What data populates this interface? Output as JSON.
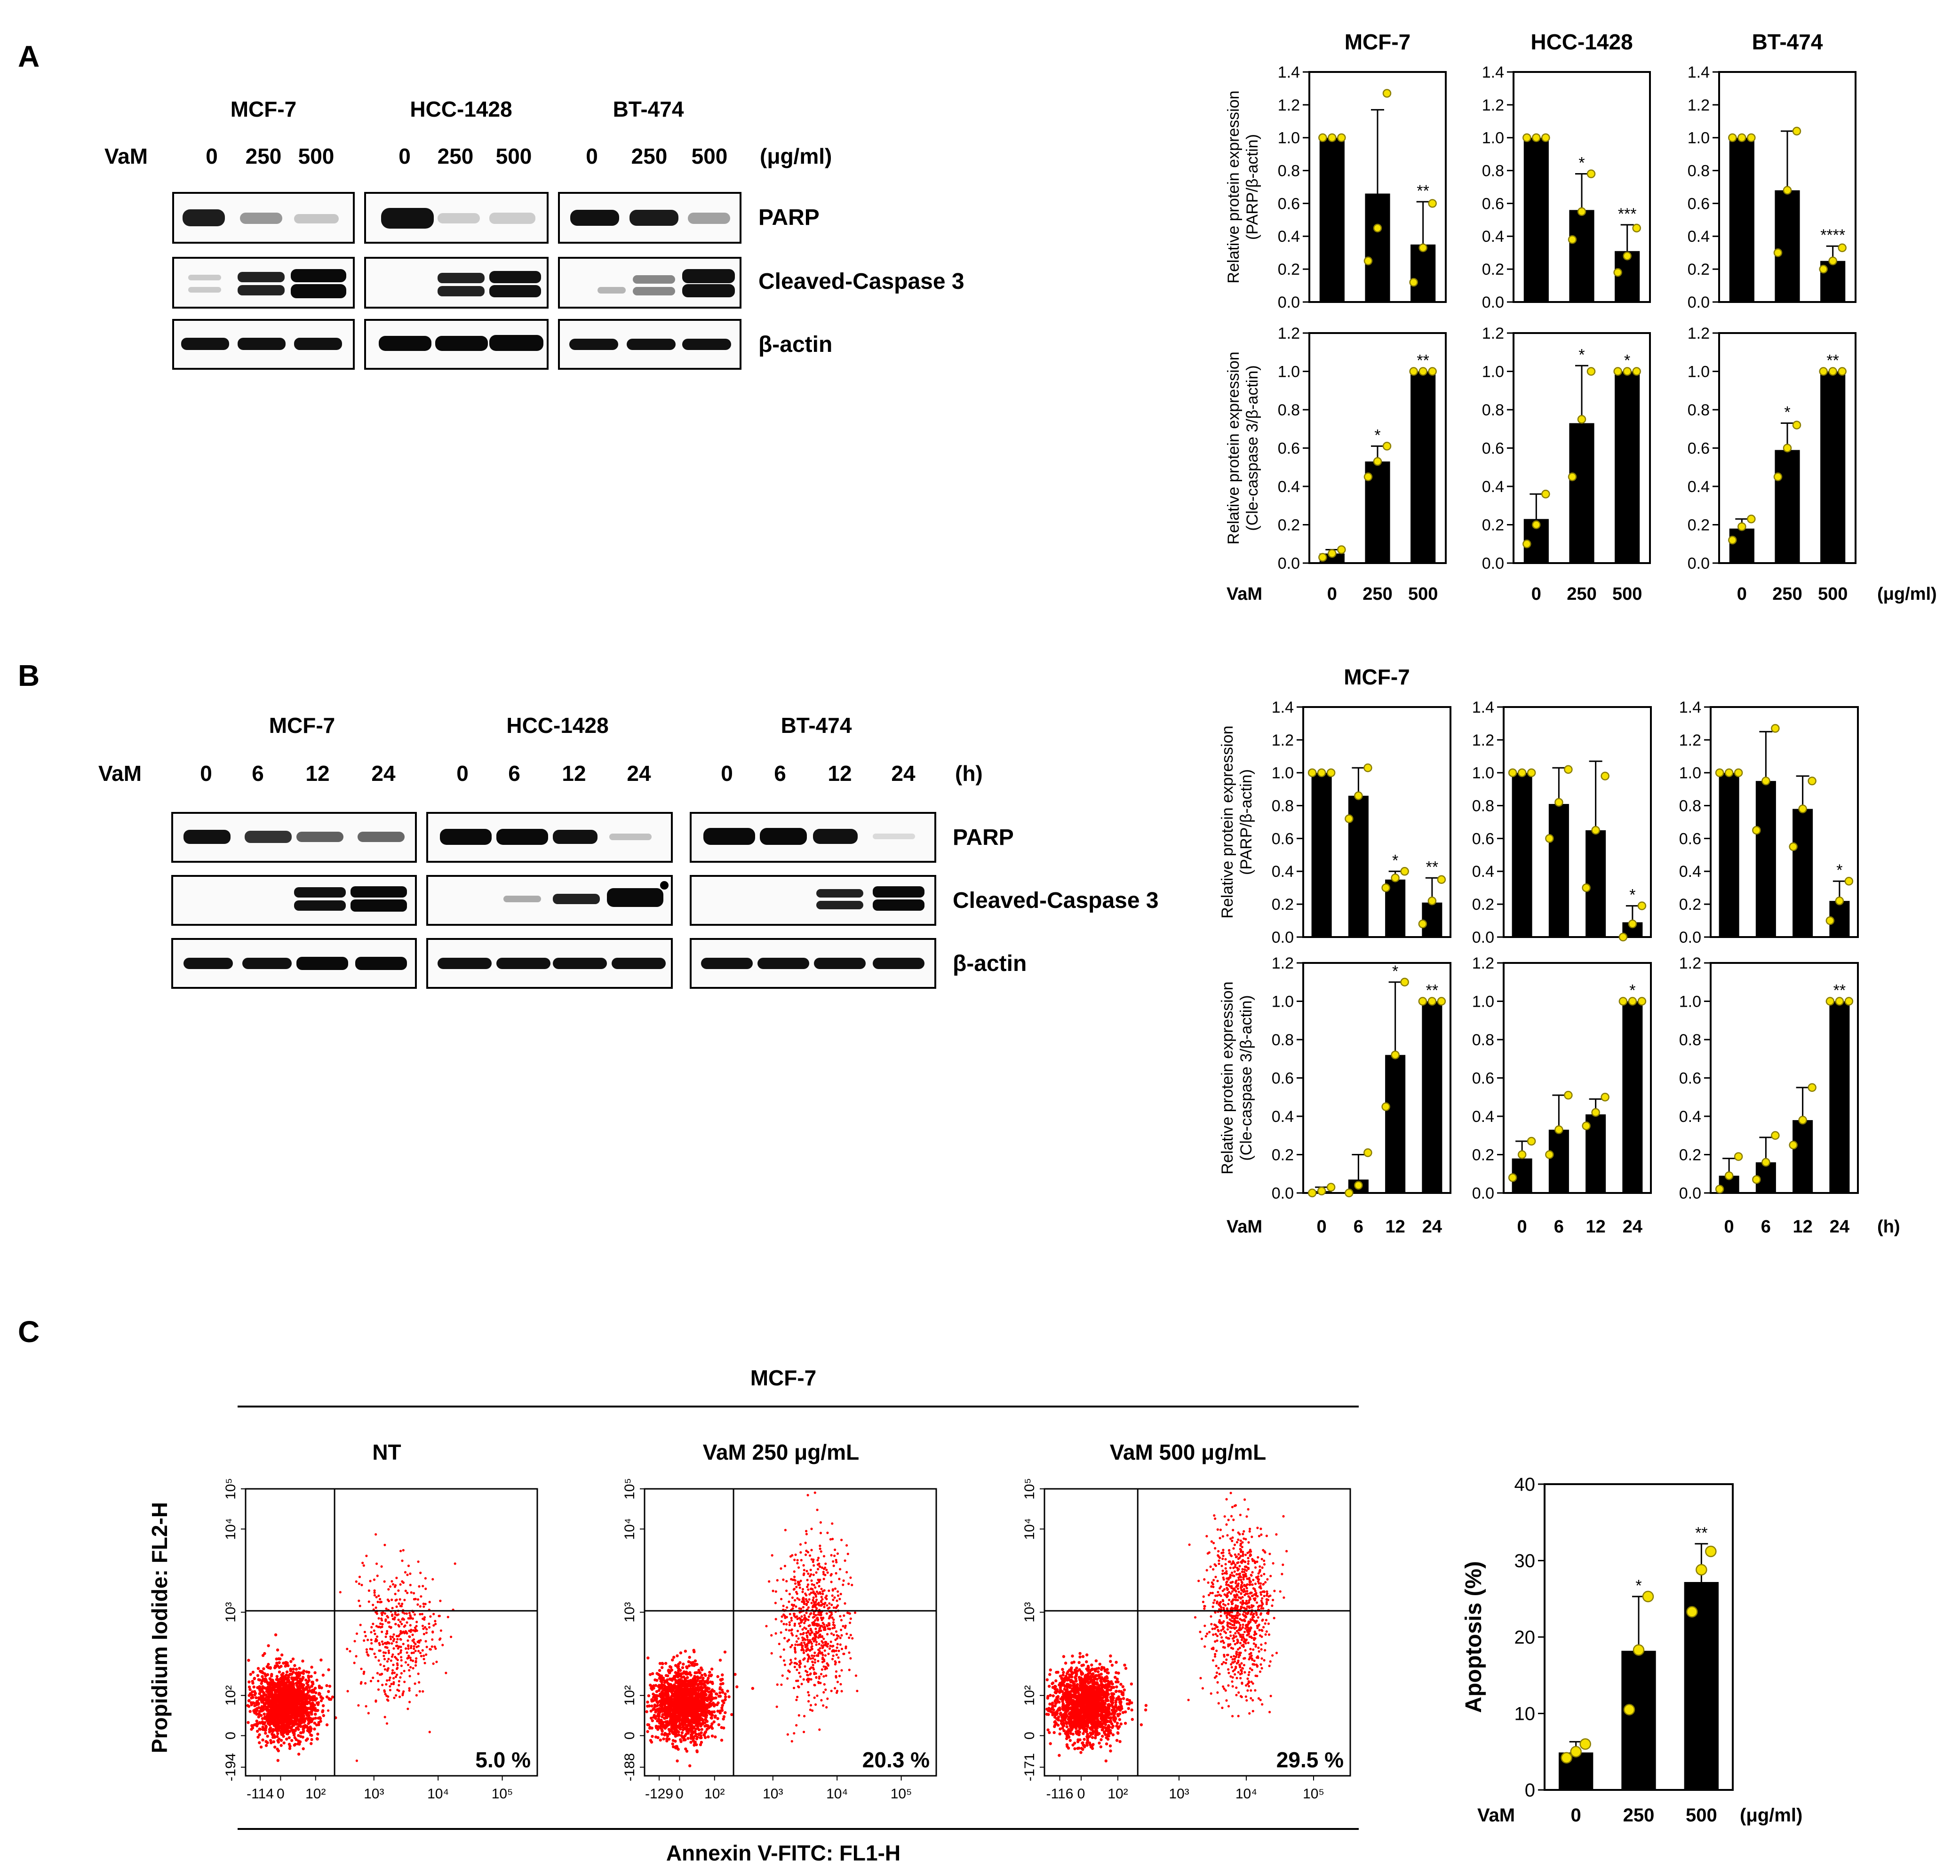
{
  "panels": {
    "a": {
      "label": "A",
      "blot": {
        "cell_lines": [
          "MCF-7",
          "HCC-1428",
          "BT-474"
        ],
        "treatment_label": "VaM",
        "lanes": [
          "0",
          "250",
          "500"
        ],
        "unit": "(μg/ml)",
        "proteins": [
          "PARP",
          "Cleaved-Caspase 3",
          "β-actin"
        ]
      }
    },
    "b": {
      "label": "B",
      "blot": {
        "cell_lines": [
          "MCF-7",
          "HCC-1428",
          "BT-474"
        ],
        "treatment_label": "VaM",
        "lanes": [
          "0",
          "6",
          "12",
          "24"
        ],
        "unit": "(h)",
        "proteins": [
          "PARP",
          "Cleaved-Caspase 3",
          "β-actin"
        ]
      }
    },
    "c": {
      "label": "C",
      "cell_line": "MCF-7",
      "x_axis_label": "Annexin V-FITC: FL1-H",
      "y_axis_label": "Propidium Iodide: FL2-H",
      "flow_plots": [
        {
          "title": "NT",
          "percent": "5.0 %",
          "x_ticks": [
            "-114",
            "0",
            "10²",
            "10³",
            "10⁴",
            "10⁵"
          ],
          "y_ticks": [
            "-194",
            "0",
            "10²",
            "10³",
            "10⁴",
            "10⁵"
          ],
          "late_apoptotic_density": 0.25,
          "shift": 0.0
        },
        {
          "title": "VaM 250 μg/mL",
          "percent": "20.3 %",
          "x_ticks": [
            "-129",
            "0",
            "10²",
            "10³",
            "10⁴",
            "10⁵"
          ],
          "y_ticks": [
            "-188",
            "0",
            "10²",
            "10³",
            "10⁴",
            "10⁵"
          ],
          "late_apoptotic_density": 0.55,
          "shift": 0.5
        },
        {
          "title": "VaM 500 μg/mL",
          "percent": "29.5 %",
          "x_ticks": [
            "-116",
            "0",
            "10²",
            "10³",
            "10⁴",
            "10⁵"
          ],
          "y_ticks": [
            "-171",
            "0",
            "10²",
            "10³",
            "10⁴",
            "10⁵"
          ],
          "late_apoptotic_density": 0.75,
          "shift": 1.0
        }
      ]
    }
  },
  "chart_data": [
    {
      "id": "a-parp-mcf7",
      "type": "bar",
      "title": "MCF-7",
      "ylabel": "Relative protein expression",
      "ylabel2": "(PARP/β-actin)",
      "categories": [
        "0",
        "250",
        "500"
      ],
      "values": [
        1.0,
        0.66,
        0.35
      ],
      "errors": [
        0,
        0.51,
        0.26
      ],
      "points": [
        [
          1,
          1,
          1
        ],
        [
          0.25,
          0.45,
          1.27
        ],
        [
          0.12,
          0.33,
          0.6
        ]
      ],
      "sig": [
        "",
        "",
        "**"
      ],
      "ylim": [
        0,
        1.4
      ],
      "yticks": [
        "0.0",
        "0.2",
        "0.4",
        "0.6",
        "0.8",
        "1.0",
        "1.2",
        "1.4"
      ]
    },
    {
      "id": "a-parp-hcc1428",
      "type": "bar",
      "title": "HCC-1428",
      "categories": [
        "0",
        "250",
        "500"
      ],
      "values": [
        1.0,
        0.56,
        0.31
      ],
      "errors": [
        0,
        0.22,
        0.16
      ],
      "points": [
        [
          1,
          1,
          1
        ],
        [
          0.38,
          0.55,
          0.78
        ],
        [
          0.18,
          0.28,
          0.45
        ]
      ],
      "sig": [
        "",
        "*",
        "***"
      ],
      "ylim": [
        0,
        1.4
      ],
      "yticks": [
        "0.0",
        "0.2",
        "0.4",
        "0.6",
        "0.8",
        "1.0",
        "1.2",
        "1.4"
      ]
    },
    {
      "id": "a-parp-bt474",
      "type": "bar",
      "title": "BT-474",
      "categories": [
        "0",
        "250",
        "500"
      ],
      "values": [
        1.0,
        0.68,
        0.25
      ],
      "errors": [
        0,
        0.36,
        0.09
      ],
      "points": [
        [
          1,
          1,
          1
        ],
        [
          0.3,
          0.68,
          1.04
        ],
        [
          0.2,
          0.25,
          0.33
        ]
      ],
      "sig": [
        "",
        "",
        "****"
      ],
      "ylim": [
        0,
        1.4
      ],
      "yticks": [
        "0.0",
        "0.2",
        "0.4",
        "0.6",
        "0.8",
        "1.0",
        "1.2",
        "1.4"
      ]
    },
    {
      "id": "a-casp-mcf7",
      "type": "bar",
      "ylabel": "Relative protein expression",
      "ylabel2": "(Cle-caspase 3/β-actin)",
      "categories": [
        "0",
        "250",
        "500"
      ],
      "values": [
        0.05,
        0.53,
        1.0
      ],
      "errors": [
        0.02,
        0.08,
        0
      ],
      "points": [
        [
          0.03,
          0.05,
          0.07
        ],
        [
          0.45,
          0.53,
          0.61
        ],
        [
          1,
          1,
          1
        ]
      ],
      "sig": [
        "",
        "*",
        "**"
      ],
      "ylim": [
        0,
        1.2
      ],
      "yticks": [
        "0.0",
        "0.2",
        "0.4",
        "0.6",
        "0.8",
        "1.0",
        "1.2"
      ]
    },
    {
      "id": "a-casp-hcc1428",
      "type": "bar",
      "categories": [
        "0",
        "250",
        "500"
      ],
      "values": [
        0.23,
        0.73,
        1.0
      ],
      "errors": [
        0.13,
        0.3,
        0
      ],
      "points": [
        [
          0.1,
          0.2,
          0.36
        ],
        [
          0.45,
          0.75,
          1.0
        ],
        [
          1,
          1,
          1
        ]
      ],
      "sig": [
        "",
        "*",
        "*"
      ],
      "ylim": [
        0,
        1.2
      ],
      "yticks": [
        "0.0",
        "0.2",
        "0.4",
        "0.6",
        "0.8",
        "1.0",
        "1.2"
      ]
    },
    {
      "id": "a-casp-bt474",
      "type": "bar",
      "categories": [
        "0",
        "250",
        "500"
      ],
      "values": [
        0.18,
        0.59,
        1.0
      ],
      "errors": [
        0.05,
        0.14,
        0
      ],
      "points": [
        [
          0.12,
          0.19,
          0.23
        ],
        [
          0.45,
          0.6,
          0.72
        ],
        [
          1,
          1,
          1
        ]
      ],
      "sig": [
        "",
        "*",
        "**"
      ],
      "ylim": [
        0,
        1.2
      ],
      "yticks": [
        "0.0",
        "0.2",
        "0.4",
        "0.6",
        "0.8",
        "1.0",
        "1.2"
      ]
    },
    {
      "id": "b-parp-mcf7",
      "type": "bar",
      "title": "MCF-7",
      "ylabel": "Relative protein expression",
      "ylabel2": "(PARP/β-actin)",
      "categories": [
        "0",
        "6",
        "12",
        "24"
      ],
      "values": [
        1.0,
        0.86,
        0.35,
        0.21
      ],
      "errors": [
        0,
        0.17,
        0.05,
        0.15
      ],
      "points": [
        [
          1,
          1,
          1
        ],
        [
          0.72,
          0.86,
          1.03
        ],
        [
          0.3,
          0.36,
          0.4
        ],
        [
          0.08,
          0.22,
          0.35
        ]
      ],
      "sig": [
        "",
        "",
        "*",
        "**"
      ],
      "ylim": [
        0,
        1.4
      ],
      "yticks": [
        "0.0",
        "0.2",
        "0.4",
        "0.6",
        "0.8",
        "1.0",
        "1.2",
        "1.4"
      ]
    },
    {
      "id": "b-parp-hcc1428",
      "type": "bar",
      "categories": [
        "0",
        "6",
        "12",
        "24"
      ],
      "values": [
        1.0,
        0.81,
        0.65,
        0.09
      ],
      "errors": [
        0,
        0.22,
        0.42,
        0.1
      ],
      "points": [
        [
          1,
          1,
          1
        ],
        [
          0.6,
          0.82,
          1.02
        ],
        [
          0.3,
          0.65,
          0.98
        ],
        [
          0.0,
          0.08,
          0.19
        ]
      ],
      "sig": [
        "",
        "",
        "",
        "*"
      ],
      "ylim": [
        0,
        1.4
      ],
      "yticks": [
        "0.0",
        "0.2",
        "0.4",
        "0.6",
        "0.8",
        "1.0",
        "1.2",
        "1.4"
      ]
    },
    {
      "id": "b-parp-bt474",
      "type": "bar",
      "categories": [
        "0",
        "6",
        "12",
        "24"
      ],
      "values": [
        1.0,
        0.95,
        0.78,
        0.22
      ],
      "errors": [
        0,
        0.3,
        0.2,
        0.12
      ],
      "points": [
        [
          1,
          1,
          1
        ],
        [
          0.65,
          0.95,
          1.27
        ],
        [
          0.55,
          0.78,
          0.95
        ],
        [
          0.1,
          0.22,
          0.34
        ]
      ],
      "sig": [
        "",
        "",
        "",
        "*"
      ],
      "ylim": [
        0,
        1.4
      ],
      "yticks": [
        "0.0",
        "0.2",
        "0.4",
        "0.6",
        "0.8",
        "1.0",
        "1.2",
        "1.4"
      ]
    },
    {
      "id": "b-casp-mcf7",
      "type": "bar",
      "ylabel": "Relative protein expression",
      "ylabel2": "(Cle-caspase 3/β-actin)",
      "categories": [
        "0",
        "6",
        "12",
        "24"
      ],
      "values": [
        0.01,
        0.07,
        0.72,
        1.0
      ],
      "errors": [
        0.02,
        0.13,
        0.38,
        0
      ],
      "points": [
        [
          0.0,
          0.01,
          0.03
        ],
        [
          0.0,
          0.04,
          0.21
        ],
        [
          0.45,
          0.72,
          1.1
        ],
        [
          1,
          1,
          1
        ]
      ],
      "sig": [
        "",
        "",
        "*",
        "**"
      ],
      "ylim": [
        0,
        1.2
      ],
      "yticks": [
        "0.0",
        "0.2",
        "0.4",
        "0.6",
        "0.8",
        "1.0",
        "1.2"
      ]
    },
    {
      "id": "b-casp-hcc1428",
      "type": "bar",
      "categories": [
        "0",
        "6",
        "12",
        "24"
      ],
      "values": [
        0.18,
        0.33,
        0.41,
        1.0
      ],
      "errors": [
        0.09,
        0.18,
        0.08,
        0
      ],
      "points": [
        [
          0.08,
          0.2,
          0.27
        ],
        [
          0.2,
          0.33,
          0.51
        ],
        [
          0.35,
          0.42,
          0.5
        ],
        [
          1,
          1,
          1
        ]
      ],
      "sig": [
        "",
        "",
        "",
        "*"
      ],
      "ylim": [
        0,
        1.2
      ],
      "yticks": [
        "0.0",
        "0.2",
        "0.4",
        "0.6",
        "0.8",
        "1.0",
        "1.2"
      ]
    },
    {
      "id": "b-casp-bt474",
      "type": "bar",
      "categories": [
        "0",
        "6",
        "12",
        "24"
      ],
      "values": [
        0.09,
        0.16,
        0.38,
        1.0
      ],
      "errors": [
        0.09,
        0.13,
        0.17,
        0
      ],
      "points": [
        [
          0.02,
          0.09,
          0.19
        ],
        [
          0.07,
          0.16,
          0.3
        ],
        [
          0.25,
          0.38,
          0.55
        ],
        [
          1,
          1,
          1
        ]
      ],
      "sig": [
        "",
        "",
        "",
        "**"
      ],
      "ylim": [
        0,
        1.2
      ],
      "yticks": [
        "0.0",
        "0.2",
        "0.4",
        "0.6",
        "0.8",
        "1.0",
        "1.2"
      ]
    },
    {
      "id": "c-apoptosis",
      "type": "bar",
      "ylabel": "Apoptosis (%)",
      "categories": [
        "0",
        "250",
        "500"
      ],
      "values": [
        4.9,
        18.2,
        27.2
      ],
      "errors": [
        1.4,
        7.1,
        5.0
      ],
      "points": [
        [
          4.2,
          5.0,
          6.0
        ],
        [
          10.5,
          18.3,
          25.3
        ],
        [
          23.3,
          28.8,
          31.2
        ]
      ],
      "sig": [
        "",
        "*",
        "**"
      ],
      "ylim": [
        0,
        40
      ],
      "yticks": [
        "0",
        "10",
        "20",
        "30",
        "40"
      ]
    }
  ],
  "axis_labels": {
    "a": {
      "treatment": "VaM",
      "categories": [
        "0",
        "250",
        "500"
      ],
      "unit": "(μg/ml)"
    },
    "b": {
      "treatment": "VaM",
      "categories": [
        "0",
        "6",
        "12",
        "24"
      ],
      "unit": "(h)"
    },
    "c": {
      "treatment": "VaM",
      "categories": [
        "0",
        "250",
        "500"
      ],
      "unit": "(μg/ml)"
    }
  },
  "colors": {
    "bar": "#000000",
    "point_fill": "#f5e100",
    "point_stroke": "#8a7d00",
    "flow_dot": "#ff0000"
  }
}
